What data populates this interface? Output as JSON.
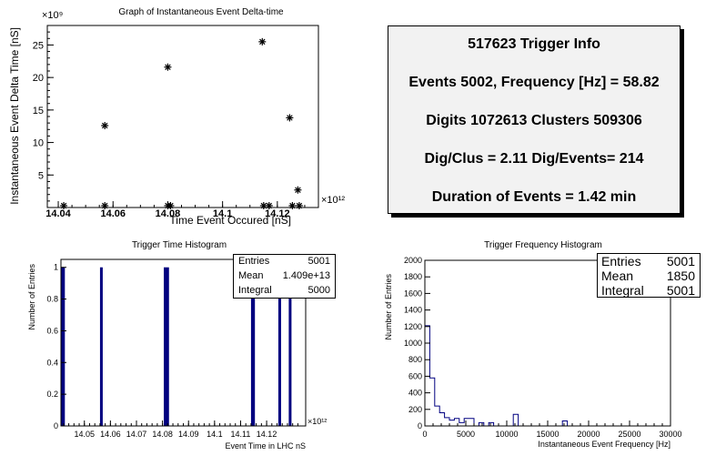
{
  "chart_data": [
    {
      "type": "scatter",
      "title": "Graph of Instantaneous Event Delta-time",
      "xlabel": "Time Event Occured [nS]",
      "ylabel": "Instantaneous Event Delta Time [nS]",
      "x_multiplier": "×10¹²",
      "y_multiplier": "×10⁹",
      "xlim": [
        14.036,
        14.135
      ],
      "ylim": [
        0,
        28
      ],
      "x_ticks": [
        "14.04",
        "14.06",
        "14.08",
        "14.1",
        "14.12"
      ],
      "y_ticks": [
        "5",
        "10",
        "15",
        "20",
        "25"
      ],
      "points": [
        {
          "x": 14.042,
          "y": 0.02
        },
        {
          "x": 14.057,
          "y": 12.6
        },
        {
          "x": 14.057,
          "y": 0.02
        },
        {
          "x": 14.08,
          "y": 21.6
        },
        {
          "x": 14.08,
          "y": 0.02
        },
        {
          "x": 14.081,
          "y": 0.02
        },
        {
          "x": 14.1145,
          "y": 25.5
        },
        {
          "x": 14.115,
          "y": 0.02
        },
        {
          "x": 14.117,
          "y": 0.02
        },
        {
          "x": 14.1245,
          "y": 13.8
        },
        {
          "x": 14.1255,
          "y": 0.02
        },
        {
          "x": 14.1275,
          "y": 2.7
        },
        {
          "x": 14.128,
          "y": 0.02
        }
      ]
    },
    {
      "type": "bar",
      "title": "Trigger Time Histogram",
      "xlabel": "Event Time in LHC nS",
      "ylabel": "Number of Entries",
      "x_multiplier": "×10¹²",
      "xlim": [
        14.041,
        14.135
      ],
      "ylim": [
        0,
        1.05
      ],
      "x_ticks": [
        "14.05",
        "14.06",
        "14.07",
        "14.08",
        "14.09",
        "14.1",
        "14.11",
        "14.12"
      ],
      "y_ticks": [
        "0",
        "0.2",
        "0.4",
        "0.6",
        "0.8",
        "1"
      ],
      "bars": [
        {
          "x0": 14.041,
          "x1": 14.0425,
          "y": 1
        },
        {
          "x0": 14.056,
          "x1": 14.057,
          "y": 1
        },
        {
          "x0": 14.0805,
          "x1": 14.0825,
          "y": 1
        },
        {
          "x0": 14.114,
          "x1": 14.1155,
          "y": 1
        },
        {
          "x0": 14.1245,
          "x1": 14.1255,
          "y": 1
        },
        {
          "x0": 14.1285,
          "x1": 14.1295,
          "y": 1
        }
      ],
      "stats": {
        "entries_label": "Entries",
        "entries": "5001",
        "mean_label": "Mean",
        "mean": "1.409e+13",
        "integral_label": "Integral",
        "integral": "5000"
      }
    },
    {
      "type": "bar",
      "title": "Trigger Frequency Histogram",
      "xlabel": "Instantaneous Event Frequency [Hz]",
      "ylabel": "Number of Entries",
      "xlim": [
        0,
        30000
      ],
      "ylim": [
        0,
        2000
      ],
      "x_ticks": [
        "0",
        "5000",
        "10000",
        "15000",
        "20000",
        "25000",
        "30000"
      ],
      "y_ticks": [
        "0",
        "200",
        "400",
        "600",
        "800",
        "1000",
        "1200",
        "1400",
        "1600",
        "1800",
        "2000"
      ],
      "bin_width": 600,
      "values": [
        1210,
        580,
        240,
        160,
        100,
        70,
        90,
        40,
        90,
        90,
        0,
        40,
        0,
        40,
        0,
        0,
        0,
        0,
        140,
        0,
        0,
        0,
        0,
        0,
        0,
        0,
        0,
        0,
        60,
        0
      ],
      "stats": {
        "entries_label": "Entries",
        "entries": "5001",
        "mean_label": "Mean",
        "mean": "1850",
        "integral_label": "Integral",
        "integral": "5001"
      }
    }
  ],
  "info": {
    "title": "517623 Trigger Info",
    "events_line": "Events 5002, Frequency [Hz] = 58.82",
    "digits_line": "Digits 1072613 Clusters 509306",
    "ratio_line": "Dig/Clus = 2.11 Dig/Events= 214",
    "duration_line": "Duration of Events = 1.42 min"
  },
  "colors": {
    "bar": "#000080",
    "frame": "#000000"
  }
}
